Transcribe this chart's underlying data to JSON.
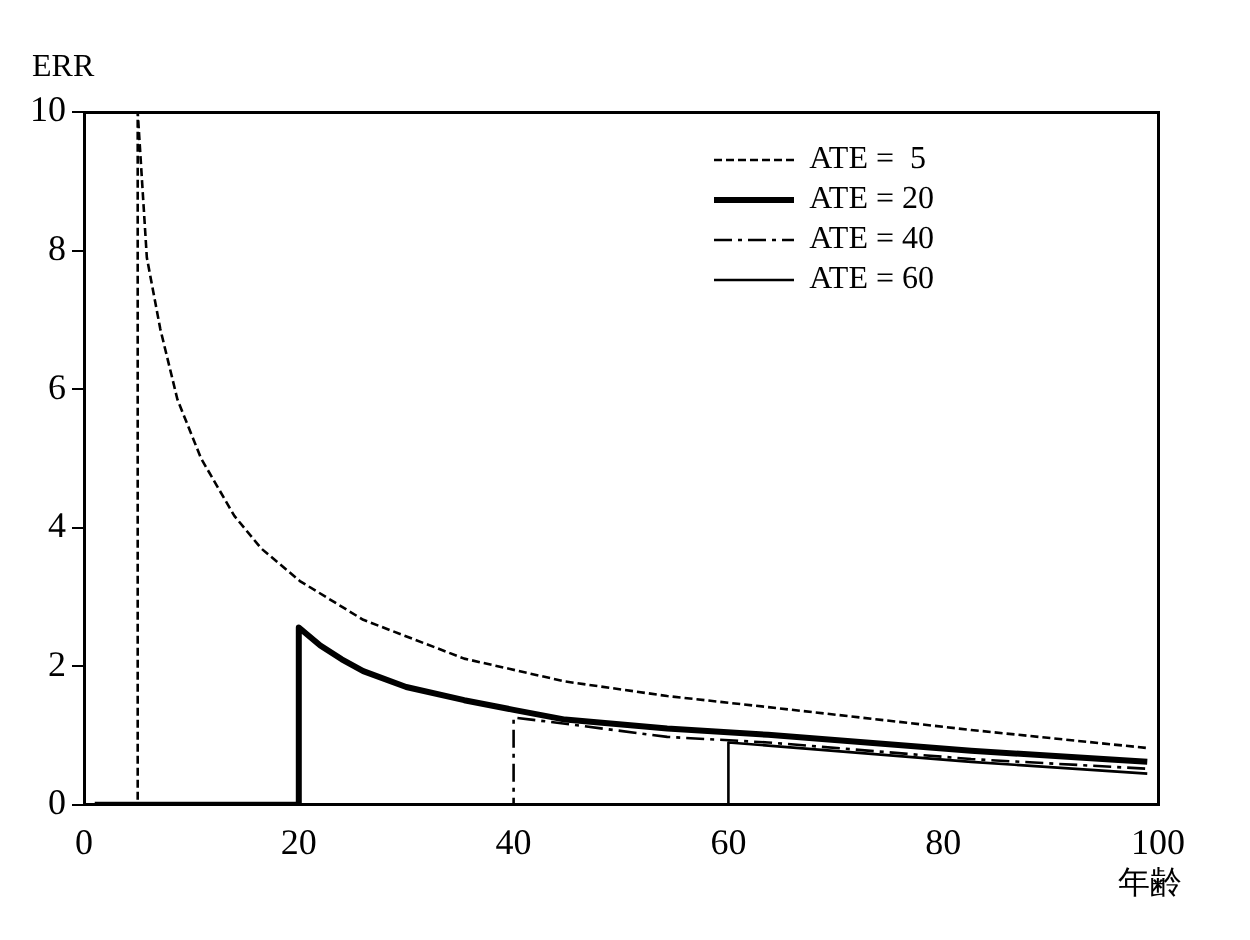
{
  "chart_data": {
    "type": "line",
    "xlabel": "年齢",
    "ylabel": "ERR",
    "xlim": [
      0,
      100
    ],
    "ylim": [
      0,
      10
    ],
    "xticks": [
      0,
      20,
      40,
      60,
      80,
      100
    ],
    "yticks": [
      0,
      2,
      4,
      6,
      8,
      10
    ],
    "grid": false,
    "legend": "top right",
    "marker": "none",
    "series": [
      {
        "name": "ATE =  5",
        "color": "#000000",
        "line_style": "dashed",
        "x": [
          1,
          5,
          5,
          5.85,
          7.1,
          8.7,
          10.9,
          14,
          16.5,
          20.1,
          26,
          35.4,
          44.8,
          54.3,
          63.7,
          82.6,
          99
        ],
        "values": [
          0,
          0,
          10,
          7.9,
          6.87,
          5.85,
          5,
          4.17,
          3.7,
          3.23,
          2.67,
          2.11,
          1.78,
          1.57,
          1.41,
          1.08,
          0.82
        ]
      },
      {
        "name": "ATE = 20",
        "color": "#000000",
        "line_style": "solid",
        "x": [
          1,
          20,
          20,
          22,
          24,
          26,
          30,
          35.4,
          40,
          44.8,
          54.3,
          63.7,
          82.6,
          99
        ],
        "values": [
          0,
          0,
          2.56,
          2.3,
          2.1,
          1.93,
          1.7,
          1.51,
          1.37,
          1.23,
          1.1,
          1.01,
          0.78,
          0.62
        ]
      },
      {
        "name": "ATE = 40",
        "color": "#000000",
        "line_style": "dashdot",
        "x": [
          1,
          40,
          40,
          44.8,
          54.3,
          63.7,
          82.6,
          99
        ],
        "values": [
          0,
          0,
          1.26,
          1.17,
          0.98,
          0.9,
          0.66,
          0.52
        ]
      },
      {
        "name": "ATE = 60",
        "color": "#000000",
        "line_style": "solid",
        "x": [
          1,
          60,
          60,
          82.6,
          99
        ],
        "values": [
          0,
          0,
          0.9,
          0.62,
          0.45
        ]
      }
    ]
  }
}
